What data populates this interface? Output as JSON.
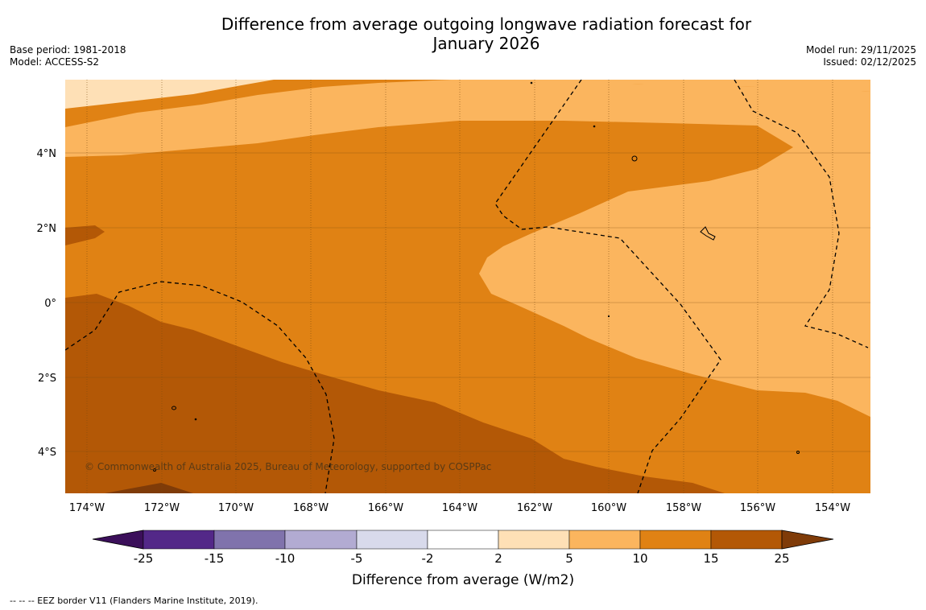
{
  "title": {
    "line1": "Difference from average outgoing longwave radiation forecast for",
    "line2": "January 2026"
  },
  "meta_left": {
    "base_period": "Base period: 1981-2018",
    "model": "Model: ACCESS-S2"
  },
  "meta_right": {
    "model_run": "Model run: 29/11/2025",
    "issued": "Issued: 02/12/2025"
  },
  "map": {
    "lat_labels": [
      "4°N",
      "2°N",
      "0°",
      "2°S",
      "4°S"
    ],
    "lon_labels": [
      "174°W",
      "172°W",
      "170°W",
      "168°W",
      "166°W",
      "164°W",
      "162°W",
      "160°W",
      "158°W",
      "156°W",
      "154°W"
    ],
    "copyright": "© Commonwealth of Australia 2025, Bureau of Meteorology, supported by COSPPac"
  },
  "colorbar": {
    "tick_labels": [
      "-25",
      "-15",
      "-10",
      "-5",
      "-2",
      "2",
      "5",
      "10",
      "15",
      "25"
    ],
    "colors": [
      "#3b0f5a",
      "#532888",
      "#8073ac",
      "#b2abd2",
      "#d8daeb",
      "#ffffff",
      "#fee0b6",
      "#fbb55e",
      "#e08214",
      "#b35806",
      "#7f3b08"
    ],
    "label": "Difference from average (W/m2)"
  },
  "footer": "-- -- -- EEZ border V11 (Flanders Marine Institute, 2019).",
  "colors": {
    "c2_5": "#fee0b6",
    "c5_10": "#fbb55e",
    "c10_15": "#e08214",
    "c15_25": "#b35806",
    "c25": "#7f3b08"
  }
}
